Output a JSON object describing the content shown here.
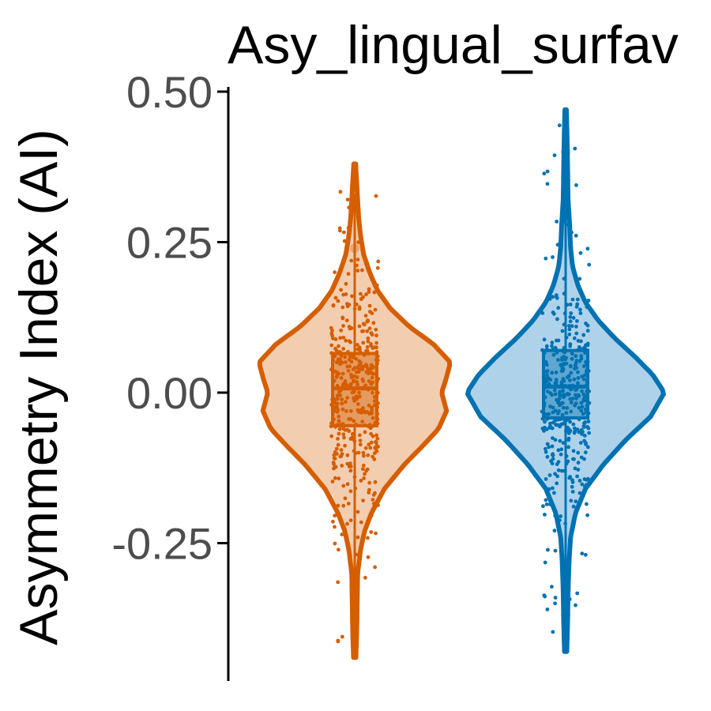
{
  "chart_data": {
    "type": "violin",
    "title": "Asy_lingual_surfav",
    "xlabel": "",
    "ylabel": "Asymmetry Index (AI)",
    "ylim": [
      -0.46,
      0.52
    ],
    "yticks": [
      "0.50",
      "0.25",
      "0.00",
      "-0.25"
    ],
    "ytick_values": [
      0.5,
      0.25,
      0.0,
      -0.25
    ],
    "grid": false,
    "legend": "none",
    "series": [
      {
        "color": "#d55e00",
        "fill": "#f3cdb0",
        "min": -0.44,
        "max": 0.38,
        "q1": -0.055,
        "median": 0.007,
        "q3": 0.065,
        "density": [
          [
            -0.44,
            0.012
          ],
          [
            -0.4,
            0.02
          ],
          [
            -0.35,
            0.025
          ],
          [
            -0.3,
            0.03
          ],
          [
            -0.26,
            0.06
          ],
          [
            -0.23,
            0.1
          ],
          [
            -0.2,
            0.17
          ],
          [
            -0.16,
            0.3
          ],
          [
            -0.12,
            0.5
          ],
          [
            -0.09,
            0.68
          ],
          [
            -0.06,
            0.85
          ],
          [
            -0.03,
            0.93
          ],
          [
            0.0,
            0.88
          ],
          [
            0.02,
            0.92
          ],
          [
            0.05,
            0.97
          ],
          [
            0.08,
            0.8
          ],
          [
            0.11,
            0.55
          ],
          [
            0.14,
            0.36
          ],
          [
            0.17,
            0.23
          ],
          [
            0.2,
            0.15
          ],
          [
            0.23,
            0.09
          ],
          [
            0.26,
            0.06
          ],
          [
            0.29,
            0.04
          ],
          [
            0.32,
            0.03
          ],
          [
            0.35,
            0.02
          ],
          [
            0.38,
            0.01
          ]
        ]
      },
      {
        "color": "#0072b2",
        "fill": "#aed2ea",
        "min": -0.43,
        "max": 0.47,
        "q1": -0.042,
        "median": 0.01,
        "q3": 0.07,
        "density": [
          [
            -0.43,
            0.012
          ],
          [
            -0.38,
            0.02
          ],
          [
            -0.33,
            0.025
          ],
          [
            -0.28,
            0.035
          ],
          [
            -0.24,
            0.05
          ],
          [
            -0.2,
            0.1
          ],
          [
            -0.16,
            0.2
          ],
          [
            -0.12,
            0.38
          ],
          [
            -0.08,
            0.6
          ],
          [
            -0.04,
            0.86
          ],
          [
            0.0,
            1.0
          ],
          [
            0.03,
            0.88
          ],
          [
            0.06,
            0.7
          ],
          [
            0.09,
            0.5
          ],
          [
            0.12,
            0.33
          ],
          [
            0.15,
            0.2
          ],
          [
            0.18,
            0.12
          ],
          [
            0.21,
            0.07
          ],
          [
            0.24,
            0.05
          ],
          [
            0.28,
            0.04
          ],
          [
            0.32,
            0.025
          ],
          [
            0.37,
            0.02
          ],
          [
            0.42,
            0.015
          ],
          [
            0.47,
            0.008
          ]
        ]
      }
    ]
  }
}
